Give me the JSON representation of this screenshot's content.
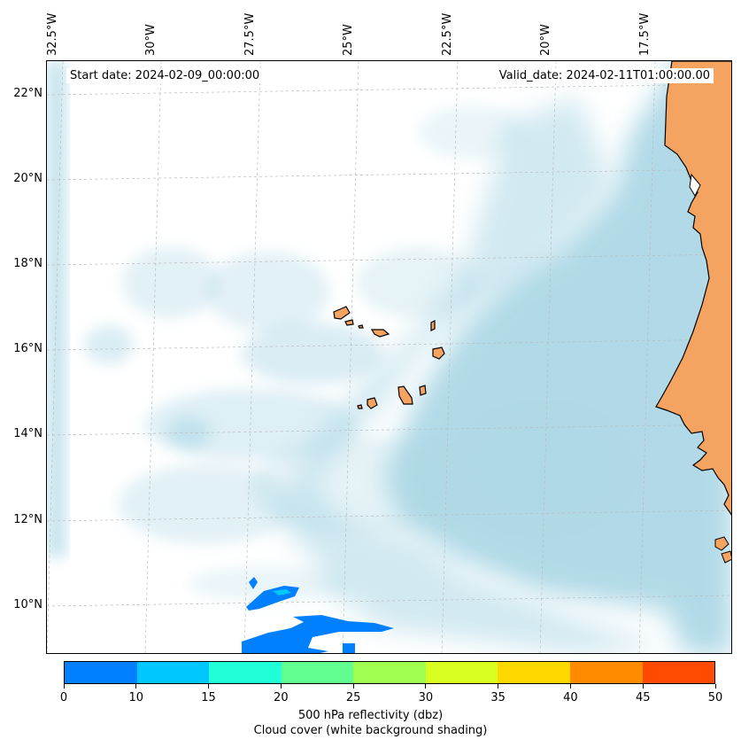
{
  "map": {
    "start_date": "Start date: 2024-02-09_00:00:00",
    "valid_date": "Valid_date: 2024-02-11T01:00:00.00",
    "longitude_labels": [
      "32.5°W",
      "30°W",
      "27.5°W",
      "25°W",
      "22.5°W",
      "20°W",
      "17.5°W"
    ],
    "latitude_labels": [
      "22°N",
      "20°N",
      "18°N",
      "16°N",
      "14°N",
      "12°N",
      "10°N"
    ],
    "land_color": "#f4a460",
    "cloud_color": "#add8e6",
    "gridline_style": "dashed light gray"
  },
  "colorbar": {
    "ticks": [
      "0",
      "10",
      "15",
      "20",
      "25",
      "30",
      "35",
      "40",
      "45",
      "50"
    ],
    "colors": [
      "#0080ff",
      "#00c8ff",
      "#20ffd8",
      "#60ff90",
      "#a0ff50",
      "#d8ff20",
      "#ffd800",
      "#ff8c00",
      "#ff4a00"
    ],
    "label_line1": "500 hPa reflectivity (dbz)",
    "label_line2": "Cloud cover (white background shading)"
  }
}
